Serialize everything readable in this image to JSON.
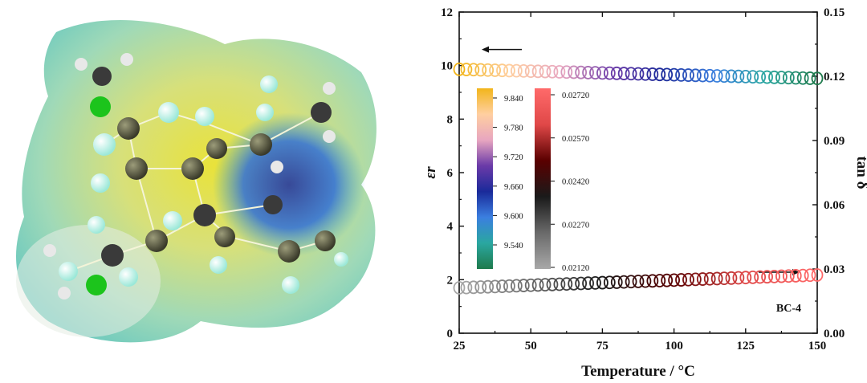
{
  "chart_data": {
    "type": "scatter",
    "xlabel": "Temperature / °C",
    "ylabel_left": "εr",
    "ylabel_right": "tan δ",
    "xlim": [
      25,
      150
    ],
    "ylim_left": [
      0,
      12
    ],
    "ylim_right": [
      0.0,
      0.15
    ],
    "x_ticks": [
      "25",
      "50",
      "75",
      "100",
      "125",
      "150"
    ],
    "y_left_ticks": [
      "0",
      "2",
      "4",
      "6",
      "8",
      "10",
      "12"
    ],
    "y_right_ticks": [
      "0.00",
      "0.03",
      "0.06",
      "0.09",
      "0.12",
      "0.15"
    ],
    "annotation": "BC-4",
    "series": [
      {
        "axis": "left",
        "x_start": 25,
        "x_end": 150,
        "x_step": 2.5,
        "y_start": 9.86,
        "y_end": 9.52,
        "marker": "open-circle",
        "arrow": "left"
      },
      {
        "axis": "right",
        "x_start": 25,
        "x_end": 150,
        "x_step": 2.5,
        "y_start": 0.0212,
        "y_end": 0.0272,
        "marker": "open-circle",
        "arrow": "right"
      }
    ],
    "colorbars": [
      {
        "for": "εr",
        "ticks": [
          "9.840",
          "9.780",
          "9.720",
          "9.660",
          "9.600",
          "9.540"
        ],
        "colors": [
          "#1e7a4c",
          "#2aa7a0",
          "#3b7fe0",
          "#1a2a9a",
          "#6b3aa8",
          "#e8a6c0",
          "#ffcfa0",
          "#f2b51a"
        ]
      },
      {
        "for": "tan δ",
        "ticks": [
          "0.02720",
          "0.02570",
          "0.02420",
          "0.02270",
          "0.02120"
        ],
        "colors": [
          "#a8a8a8",
          "#6a6a6a",
          "#1a1a1a",
          "#5a0000",
          "#e04848",
          "#ff6a6a"
        ]
      }
    ]
  }
}
